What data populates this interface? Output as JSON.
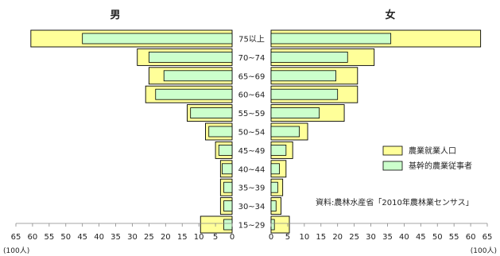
{
  "chart_data": {
    "type": "bar",
    "orientation": "horizontal-pyramid",
    "left_title": "男",
    "right_title": "女",
    "categories": [
      "75以上",
      "70~74",
      "65~69",
      "60~64",
      "55~59",
      "50~54",
      "45~49",
      "40~44",
      "35~39",
      "30~34",
      "15~29"
    ],
    "series": [
      {
        "name": "農業就業人口",
        "color": "#ffff99",
        "male": [
          60.5,
          28.5,
          25.0,
          26.0,
          13.5,
          8.0,
          5.0,
          3.5,
          3.5,
          3.5,
          9.5
        ],
        "female": [
          63.0,
          31.0,
          26.0,
          26.0,
          22.0,
          11.0,
          6.5,
          4.5,
          3.5,
          3.0,
          5.5
        ]
      },
      {
        "name": "基幹的農業従事者",
        "color": "#ccffcc",
        "male": [
          45.0,
          25.0,
          20.5,
          23.0,
          12.5,
          7.0,
          4.0,
          3.0,
          2.5,
          2.5,
          2.5
        ],
        "female": [
          36.0,
          23.0,
          19.5,
          20.0,
          14.5,
          8.5,
          4.5,
          2.5,
          2.0,
          1.5,
          1.0
        ]
      }
    ],
    "male_ticks": [
      "65",
      "60",
      "55",
      "50",
      "45",
      "40",
      "35",
      "30",
      "25",
      "20",
      "15",
      "10",
      "5",
      "0"
    ],
    "female_ticks": [
      "0",
      "5",
      "10",
      "15",
      "20",
      "25",
      "30",
      "35",
      "40",
      "45",
      "50",
      "55",
      "60",
      "65"
    ],
    "xlim": [
      0,
      65
    ],
    "unit_label": "(100人)",
    "source": "資料:農林水産省「2010年農林業センサス」",
    "legend_position": "right"
  }
}
